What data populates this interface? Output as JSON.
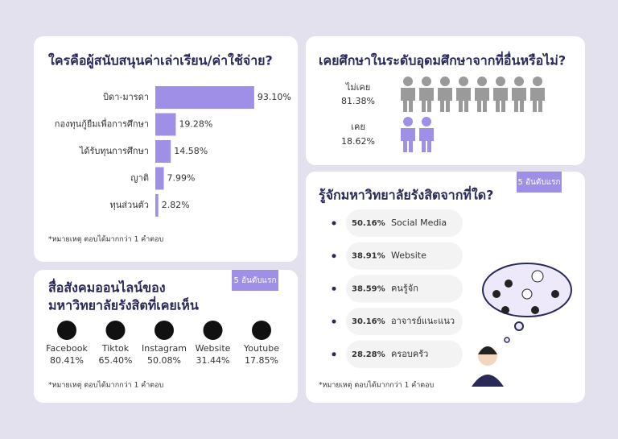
{
  "chart_data": {
    "type": "bar",
    "orientation": "horizontal",
    "title": "ใครคือผู้สนับสนุนค่าเล่าเรียน/ค่าใช้จ่าย?",
    "categories": [
      "บิดา-มารดา",
      "กองทุนกู้ยืมเพื่อการศึกษา",
      "ได้รับทุนการศึกษา",
      "ญาติ",
      "ทุนส่วนตัว"
    ],
    "values": [
      93.1,
      19.28,
      14.58,
      7.99,
      2.82
    ],
    "value_labels": [
      "93.10%",
      "19.28%",
      "14.58%",
      "7.99%",
      "2.82%"
    ],
    "xlim": [
      0,
      100
    ],
    "color": "#a08fe6",
    "note": "*หมายเหตุ ตอบได้มากกว่า 1 คำตอบ"
  },
  "education_panel": {
    "title": "เคยศึกษาในระดับอุดมศึกษาจากที่อื่นหรือไม่?",
    "rows": [
      {
        "label": "ไม่เคย",
        "value": "81.38%"
      },
      {
        "label": "เคย",
        "value": "18.62%"
      }
    ]
  },
  "awareness_panel": {
    "badge": "5 อันดับแรก",
    "title": "รู้จักมหาวิทยาลัยรังสิตจากที่ใด?",
    "items": [
      {
        "value": "50.16%",
        "label": "Social Media"
      },
      {
        "value": "38.91%",
        "label": "Website"
      },
      {
        "value": "38.59%",
        "label": "คนรู้จัก"
      },
      {
        "value": "30.16%",
        "label": "อาจารย์แนะแนว"
      },
      {
        "value": "28.28%",
        "label": "ครอบครัว"
      }
    ],
    "note": "*หมายเหตุ ตอบได้มากกว่า 1 คำตอบ"
  },
  "social_panel": {
    "badge": "5 อันดับแรก",
    "title": [
      "สื่อสังคมออนไลน์ของ",
      "มหาวิทยาลัยรังสิตที่เคยเห็น"
    ],
    "items": [
      {
        "name": "Facebook",
        "value": "80.41%"
      },
      {
        "name": "Tiktok",
        "value": "65.40%"
      },
      {
        "name": "Instagram",
        "value": "50.08%"
      },
      {
        "name": "Website",
        "value": "31.44%"
      },
      {
        "name": "Youtube",
        "value": "17.85%"
      }
    ],
    "note": "*หมายเหตุ ตอบได้มากกว่า 1 คำตอบ"
  }
}
